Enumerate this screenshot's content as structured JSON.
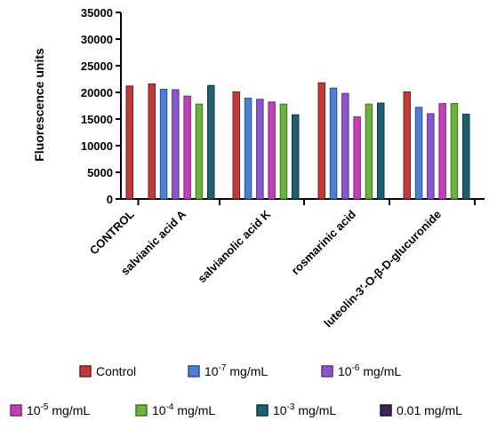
{
  "chart_data": {
    "type": "bar",
    "title": "",
    "xlabel": "",
    "ylabel": "Fluorescence units",
    "ylim": [
      0,
      35000
    ],
    "yticks": [
      0,
      5000,
      10000,
      15000,
      20000,
      25000,
      30000,
      35000
    ],
    "grid": false,
    "legend_position": "bottom",
    "groups": [
      {
        "label": "CONTROL",
        "values": [
          21200
        ]
      },
      {
        "label": "salvianic acid A",
        "values": [
          21600,
          20600,
          20500,
          19300,
          17800,
          21300
        ]
      },
      {
        "label": "salvianolic acid K",
        "values": [
          20100,
          18900,
          18700,
          18200,
          17800,
          15800
        ]
      },
      {
        "label": "rosmarinic acid",
        "values": [
          21800,
          20800,
          19800,
          15400,
          17800,
          18000
        ]
      },
      {
        "label": "luteolin-3′-O-β-D-glucuronide",
        "values": [
          20100,
          17200,
          16000,
          17900,
          17900,
          15900
        ]
      }
    ],
    "series": [
      {
        "name": "Control",
        "color": "#c0393b",
        "edge": "#7a1d1f"
      },
      {
        "base": "10",
        "exp": "-7",
        "unit": " mg/mL",
        "color": "#4f7fd0",
        "edge": "#2a4f8f"
      },
      {
        "base": "10",
        "exp": "-6",
        "unit": " mg/mL",
        "color": "#8a57c9",
        "edge": "#5a2f94"
      },
      {
        "base": "10",
        "exp": "-5",
        "unit": " mg/mL",
        "color": "#c43fb4",
        "edge": "#85237a"
      },
      {
        "base": "10",
        "exp": "-4",
        "unit": " mg/mL",
        "color": "#6cb13d",
        "edge": "#3f7520"
      },
      {
        "base": "10",
        "exp": "-3",
        "unit": " mg/mL",
        "color": "#1f5f6f",
        "edge": "#0e3540"
      },
      {
        "name": "0.01 mg/mL",
        "color": "#3d2556",
        "edge": "#1e1030"
      }
    ]
  }
}
